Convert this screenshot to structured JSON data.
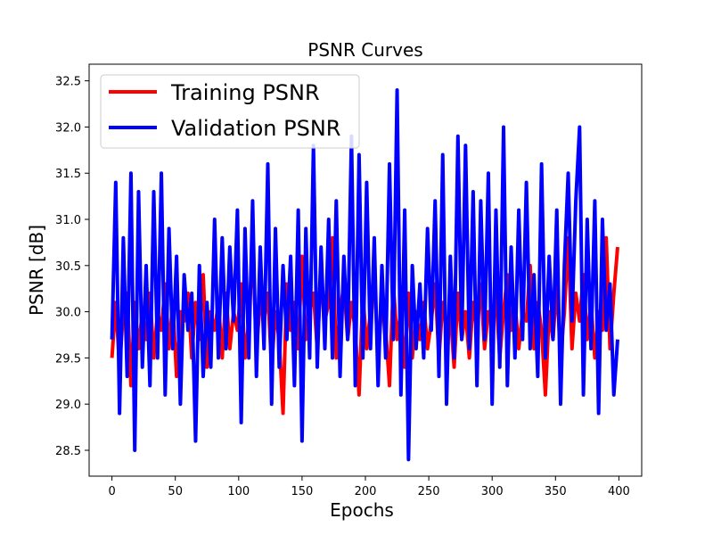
{
  "chart_data": {
    "type": "line",
    "title": "PSNR Curves",
    "xlabel": "Epochs",
    "ylabel": "PSNR [dB]",
    "xlim": [
      -18,
      418
    ],
    "ylim": [
      28.22,
      32.68
    ],
    "xticks": [
      0,
      50,
      100,
      150,
      200,
      250,
      300,
      350,
      400
    ],
    "yticks": [
      28.5,
      29.0,
      29.5,
      30.0,
      30.5,
      31.0,
      31.5,
      32.0,
      32.5
    ],
    "grid": false,
    "legend_position": "top-left",
    "series": [
      {
        "name": "Training PSNR",
        "color": "#ff0000",
        "x": [
          0,
          3,
          6,
          9,
          12,
          15,
          18,
          21,
          24,
          27,
          30,
          33,
          36,
          39,
          42,
          45,
          48,
          51,
          54,
          57,
          60,
          63,
          66,
          69,
          72,
          75,
          78,
          81,
          84,
          87,
          90,
          93,
          96,
          99,
          102,
          105,
          108,
          111,
          114,
          117,
          120,
          123,
          126,
          129,
          132,
          135,
          138,
          141,
          144,
          147,
          150,
          153,
          156,
          159,
          162,
          165,
          168,
          171,
          174,
          177,
          180,
          183,
          186,
          189,
          192,
          195,
          198,
          201,
          204,
          207,
          210,
          213,
          216,
          219,
          222,
          225,
          228,
          231,
          234,
          237,
          240,
          243,
          246,
          249,
          252,
          255,
          258,
          261,
          264,
          267,
          270,
          273,
          276,
          279,
          282,
          285,
          288,
          291,
          294,
          297,
          300,
          303,
          306,
          309,
          312,
          315,
          318,
          321,
          324,
          327,
          330,
          333,
          336,
          339,
          342,
          345,
          348,
          351,
          354,
          357,
          360,
          363,
          366,
          369,
          372,
          375,
          378,
          381,
          384,
          387,
          390,
          393,
          396,
          399
        ],
        "y": [
          29.5,
          30.1,
          29.4,
          30.0,
          30.2,
          29.2,
          30.1,
          29.6,
          30.0,
          29.7,
          30.2,
          29.5,
          30.0,
          29.8,
          30.3,
          29.6,
          30.1,
          29.3,
          30.0,
          29.9,
          30.2,
          29.5,
          30.1,
          29.7,
          30.4,
          29.4,
          30.0,
          29.8,
          30.1,
          29.5,
          30.2,
          29.6,
          30.0,
          29.8,
          30.3,
          29.5,
          29.9,
          30.7,
          29.6,
          30.1,
          29.9,
          30.2,
          29.4,
          30.0,
          29.7,
          28.9,
          30.3,
          29.8,
          30.1,
          29.6,
          30.6,
          29.7,
          30.0,
          30.2,
          29.6,
          30.4,
          29.9,
          30.1,
          30.8,
          29.5,
          30.0,
          30.3,
          29.7,
          30.1,
          29.8,
          29.1,
          30.2,
          29.6,
          30.0,
          30.4,
          29.5,
          30.1,
          29.8,
          29.2,
          30.3,
          29.7,
          30.0,
          29.4,
          30.2,
          29.5,
          30.0,
          29.7,
          30.1,
          29.6,
          29.9,
          30.3,
          29.5,
          30.1,
          29.8,
          30.0,
          29.4,
          30.2,
          29.7,
          30.0,
          29.5,
          30.1,
          29.8,
          30.3,
          29.6,
          30.0,
          29.9,
          30.2,
          29.5,
          30.0,
          30.4,
          29.8,
          30.1,
          29.6,
          30.0,
          29.9,
          30.5,
          29.6,
          30.1,
          29.8,
          29.1,
          30.0,
          29.7,
          30.3,
          29.5,
          30.0,
          30.8,
          29.6,
          30.2,
          29.9,
          30.4,
          29.7,
          30.1,
          29.5,
          30.0,
          29.8,
          30.8,
          29.6,
          30.2,
          30.7
        ],
        "values_note_is_omitted": false
      },
      {
        "name": "Validation PSNR",
        "color": "#0000ff",
        "x": [
          0,
          3,
          6,
          9,
          12,
          15,
          18,
          21,
          24,
          27,
          30,
          33,
          36,
          39,
          42,
          45,
          48,
          51,
          54,
          57,
          60,
          63,
          66,
          69,
          72,
          75,
          78,
          81,
          84,
          87,
          90,
          93,
          96,
          99,
          102,
          105,
          108,
          111,
          114,
          117,
          120,
          123,
          126,
          129,
          132,
          135,
          138,
          141,
          144,
          147,
          150,
          153,
          156,
          159,
          162,
          165,
          168,
          171,
          174,
          177,
          180,
          183,
          186,
          189,
          192,
          195,
          198,
          201,
          204,
          207,
          210,
          213,
          216,
          219,
          222,
          225,
          228,
          231,
          234,
          237,
          240,
          243,
          246,
          249,
          252,
          255,
          258,
          261,
          264,
          267,
          270,
          273,
          276,
          279,
          282,
          285,
          288,
          291,
          294,
          297,
          300,
          303,
          306,
          309,
          312,
          315,
          318,
          321,
          324,
          327,
          330,
          333,
          336,
          339,
          342,
          345,
          348,
          351,
          354,
          357,
          360,
          363,
          366,
          369,
          372,
          375,
          378,
          381,
          384,
          387,
          390,
          393,
          396,
          399
        ],
        "y": [
          29.7,
          31.4,
          28.9,
          30.8,
          29.3,
          31.5,
          28.5,
          31.3,
          29.4,
          30.5,
          29.2,
          31.3,
          29.5,
          31.5,
          29.1,
          30.9,
          29.6,
          30.6,
          29.0,
          30.4,
          29.8,
          30.2,
          28.6,
          30.5,
          29.3,
          30.1,
          29.4,
          31.0,
          29.5,
          30.8,
          29.6,
          30.7,
          29.9,
          31.1,
          28.8,
          30.9,
          29.5,
          31.2,
          29.3,
          30.7,
          29.6,
          31.6,
          29.0,
          30.9,
          29.4,
          30.5,
          29.7,
          30.6,
          29.2,
          31.1,
          28.6,
          30.9,
          29.5,
          31.8,
          29.4,
          30.7,
          29.6,
          31.0,
          29.5,
          31.2,
          29.3,
          30.6,
          29.7,
          31.9,
          29.2,
          31.7,
          29.5,
          31.4,
          29.6,
          30.8,
          29.2,
          30.5,
          29.5,
          31.6,
          29.7,
          32.4,
          29.1,
          31.1,
          28.4,
          30.5,
          29.6,
          30.3,
          29.5,
          30.9,
          29.8,
          31.2,
          29.3,
          31.7,
          29.0,
          30.6,
          29.5,
          31.9,
          29.7,
          31.8,
          29.6,
          31.3,
          29.2,
          31.2,
          29.7,
          31.5,
          29.0,
          31.1,
          29.4,
          32.0,
          29.2,
          30.7,
          29.5,
          31.1,
          29.7,
          31.4,
          29.6,
          30.4,
          29.3,
          31.6,
          29.5,
          30.6,
          29.7,
          31.1,
          29.0,
          30.5,
          31.5,
          29.9,
          31.2,
          32.0,
          29.1,
          31.0,
          29.6,
          31.2,
          28.9,
          31.0,
          29.8,
          30.3,
          29.1,
          29.7
        ]
      }
    ]
  }
}
